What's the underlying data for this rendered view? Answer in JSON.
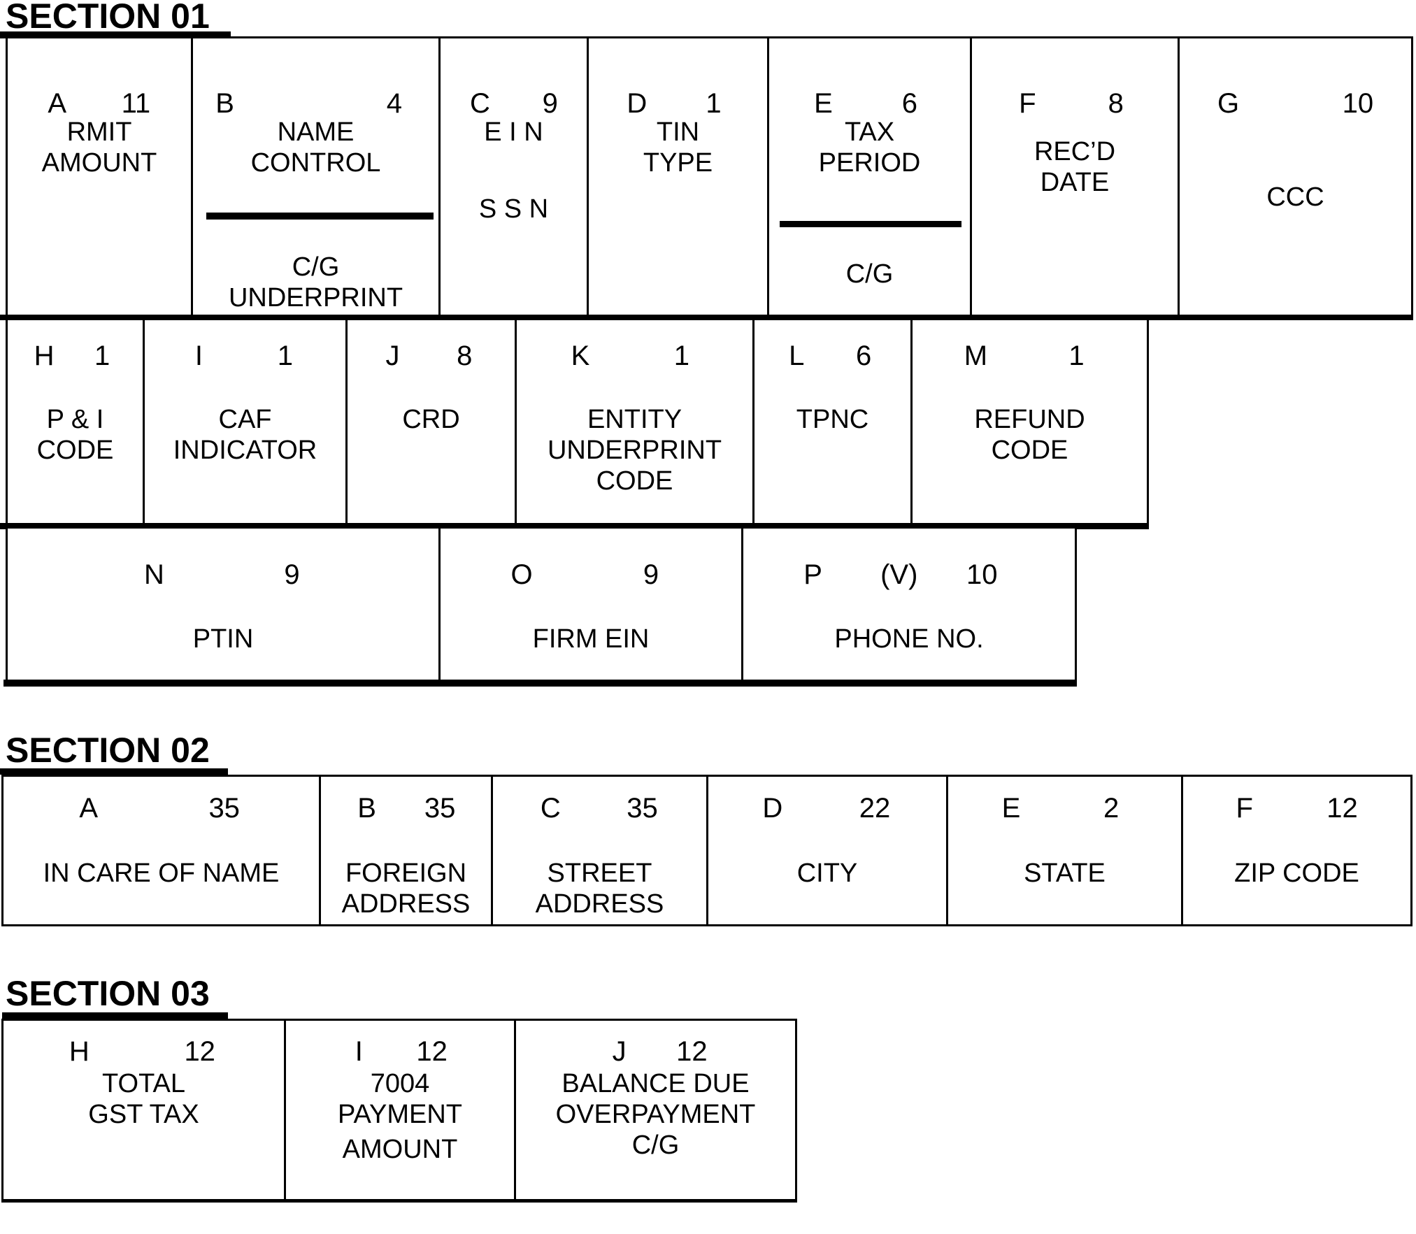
{
  "colors": {
    "ink": "#000000",
    "paper": "#ffffff"
  },
  "headings": {
    "s1": "SECTION 01",
    "s2": "SECTION 02",
    "s3": "SECTION 03"
  },
  "boxes": {
    "s1a": {
      "letter": "A",
      "size": "11",
      "l1": "RMIT",
      "l2": "AMOUNT"
    },
    "s1b": {
      "letter": "B",
      "size": "4",
      "l1": "NAME",
      "l2": "CONTROL",
      "u1": "C/G",
      "u2": "UNDERPRINT"
    },
    "s1c": {
      "letter": "C",
      "size": "9",
      "l1": "E I N",
      "l2": "S S N"
    },
    "s1d": {
      "letter": "D",
      "size": "1",
      "l1": "TIN",
      "l2": "TYPE"
    },
    "s1e": {
      "letter": "E",
      "size": "6",
      "l1": "TAX",
      "l2": "PERIOD",
      "u1": "C/G"
    },
    "s1f": {
      "letter": "F",
      "size": "8",
      "l1": "REC’D",
      "l2": "DATE"
    },
    "s1g": {
      "letter": "G",
      "size": "10",
      "l1": "CCC"
    },
    "s1h": {
      "letter": "H",
      "size": "1",
      "l1": "P & I",
      "l2": "CODE"
    },
    "s1i": {
      "letter": "I",
      "size": "1",
      "l1": "CAF",
      "l2": "INDICATOR"
    },
    "s1j": {
      "letter": "J",
      "size": "8",
      "l1": "CRD"
    },
    "s1k": {
      "letter": "K",
      "size": "1",
      "l1": "ENTITY",
      "l2": "UNDERPRINT",
      "l3": "CODE"
    },
    "s1l": {
      "letter": "L",
      "size": "6",
      "l1": "TPNC"
    },
    "s1m": {
      "letter": "M",
      "size": "1",
      "l1": "REFUND",
      "l2": "CODE"
    },
    "s1n": {
      "letter": "N",
      "size": "9",
      "l1": "PTIN"
    },
    "s1o": {
      "letter": "O",
      "size": "9",
      "l1": "FIRM EIN"
    },
    "s1p": {
      "letter": "P",
      "variable_indicator": "(V)",
      "size": "10",
      "l1": "PHONE NO."
    },
    "s2a": {
      "letter": "A",
      "size": "35",
      "l1": "IN CARE OF NAME"
    },
    "s2b": {
      "letter": "B",
      "size": "35",
      "l1": "FOREIGN",
      "l2": "ADDRESS"
    },
    "s2c": {
      "letter": "C",
      "size": "35",
      "l1": "STREET",
      "l2": "ADDRESS"
    },
    "s2d": {
      "letter": "D",
      "size": "22",
      "l1": "CITY"
    },
    "s2e": {
      "letter": "E",
      "size": "2",
      "l1": "STATE"
    },
    "s2f": {
      "letter": "F",
      "size": "12",
      "l1": "ZIP CODE"
    },
    "s3h": {
      "letter": "H",
      "size": "12",
      "l1": "TOTAL",
      "l2": "GST TAX"
    },
    "s3i": {
      "letter": "I",
      "size": "12",
      "l1": "7004",
      "l2": "PAYMENT",
      "l3": "AMOUNT"
    },
    "s3j": {
      "letter": "J",
      "size": "12",
      "l1": "BALANCE DUE",
      "l2": "OVERPAYMENT",
      "l3": "C/G"
    }
  }
}
